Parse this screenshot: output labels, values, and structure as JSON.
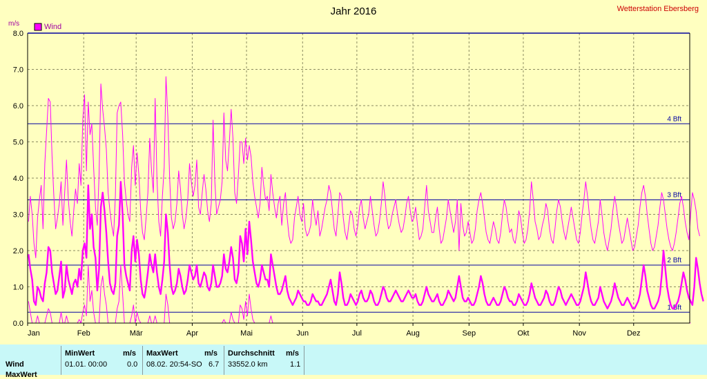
{
  "header": {
    "title": "Jahr 2016",
    "station": "Wetterstation Ebersberg"
  },
  "chart_data": {
    "type": "line",
    "ylabel": "m/s",
    "ylim": [
      0,
      8
    ],
    "yticks": [
      "0.0",
      "1.0",
      "2.0",
      "3.0",
      "4.0",
      "5.0",
      "6.0",
      "7.0",
      "8.0"
    ],
    "months": [
      "Jan",
      "Feb",
      "Mär",
      "Apr",
      "Mai",
      "Jun",
      "Jul",
      "Aug",
      "Sep",
      "Okt",
      "Nov",
      "Dez"
    ],
    "days_in_year": 366,
    "grid": true,
    "legend": {
      "label": "Wind",
      "position": "top-left",
      "color": "#ff00ff"
    },
    "beaufort": [
      {
        "label": "1 Bft",
        "value": 0.3
      },
      {
        "label": "2 Bft",
        "value": 1.6
      },
      {
        "label": "3 Bft",
        "value": 3.4
      },
      {
        "label": "4 Bft",
        "value": 5.5
      }
    ],
    "series": [
      {
        "name": "Wind",
        "color": "#ff00ff",
        "average": [
          1.9,
          1.5,
          1.2,
          0.6,
          0.5,
          1.0,
          0.9,
          0.7,
          0.6,
          1.1,
          1.4,
          2.1,
          2.0,
          1.4,
          1.1,
          0.8,
          0.9,
          1.3,
          1.7,
          0.7,
          0.9,
          1.6,
          1.2,
          1.0,
          0.8,
          1.1,
          1.2,
          1.0,
          1.5,
          1.2,
          2.0,
          2.2,
          1.8,
          3.8,
          2.6,
          3.0,
          2.1,
          1.8,
          0.9,
          1.5,
          3.2,
          3.6,
          3.1,
          2.5,
          1.7,
          1.1,
          0.9,
          0.8,
          1.1,
          2.4,
          2.7,
          3.9,
          3.0,
          1.6,
          1.3,
          1.1,
          0.9,
          2.0,
          2.4,
          1.7,
          2.3,
          1.9,
          1.2,
          0.8,
          0.7,
          1.0,
          1.4,
          1.9,
          1.6,
          1.4,
          1.9,
          1.4,
          1.0,
          0.8,
          1.2,
          1.7,
          3.0,
          2.5,
          1.6,
          1.0,
          0.8,
          0.9,
          1.1,
          1.5,
          1.3,
          1.0,
          0.8,
          0.9,
          1.2,
          1.6,
          1.4,
          1.2,
          1.3,
          1.6,
          1.1,
          1.0,
          1.2,
          1.4,
          1.3,
          1.0,
          0.9,
          1.1,
          1.6,
          1.3,
          1.0,
          1.0,
          1.1,
          1.3,
          1.9,
          1.5,
          1.4,
          1.7,
          2.1,
          1.8,
          1.2,
          1.1,
          1.4,
          2.4,
          2.2,
          1.7,
          2.6,
          1.9,
          2.8,
          2.3,
          1.7,
          1.4,
          1.1,
          1.0,
          1.2,
          1.6,
          1.4,
          1.2,
          1.2,
          1.0,
          1.9,
          1.6,
          1.3,
          1.0,
          0.8,
          0.8,
          0.9,
          1.1,
          1.3,
          0.9,
          0.7,
          0.6,
          0.5,
          0.6,
          0.7,
          0.9,
          0.8,
          0.7,
          0.6,
          0.6,
          0.5,
          0.5,
          0.6,
          0.8,
          0.7,
          0.6,
          0.6,
          0.5,
          0.5,
          0.6,
          0.7,
          0.8,
          1.0,
          1.2,
          0.9,
          0.6,
          0.5,
          0.8,
          1.4,
          1.1,
          0.7,
          0.5,
          0.5,
          0.6,
          0.8,
          0.7,
          0.6,
          0.5,
          0.6,
          0.8,
          0.9,
          0.7,
          0.6,
          0.6,
          0.7,
          0.9,
          0.8,
          0.6,
          0.5,
          0.5,
          0.6,
          0.8,
          1.0,
          0.9,
          0.7,
          0.6,
          0.6,
          0.7,
          0.8,
          0.9,
          0.8,
          0.7,
          0.6,
          0.6,
          0.7,
          0.8,
          0.9,
          0.8,
          0.7,
          0.7,
          0.8,
          0.6,
          0.5,
          0.5,
          0.6,
          0.8,
          1.0,
          0.8,
          0.7,
          0.6,
          0.6,
          0.7,
          0.8,
          0.6,
          0.5,
          0.5,
          0.6,
          0.7,
          0.9,
          0.8,
          0.7,
          0.6,
          0.7,
          1.0,
          1.3,
          1.0,
          0.7,
          0.6,
          0.6,
          0.7,
          0.6,
          0.5,
          0.5,
          0.6,
          0.8,
          1.0,
          1.3,
          1.1,
          0.8,
          0.6,
          0.5,
          0.5,
          0.6,
          0.7,
          0.6,
          0.5,
          0.5,
          0.6,
          0.8,
          1.0,
          0.9,
          0.7,
          0.6,
          0.6,
          0.5,
          0.5,
          0.6,
          0.8,
          0.7,
          0.6,
          0.5,
          0.5,
          0.6,
          0.8,
          1.1,
          0.9,
          0.7,
          0.6,
          0.5,
          0.5,
          0.6,
          0.7,
          0.9,
          0.8,
          0.6,
          0.5,
          0.5,
          0.6,
          0.8,
          1.0,
          0.9,
          0.7,
          0.6,
          0.5,
          0.6,
          0.7,
          0.8,
          0.7,
          0.6,
          0.5,
          0.5,
          0.6,
          0.8,
          1.0,
          1.4,
          1.1,
          0.8,
          0.6,
          0.5,
          0.5,
          0.6,
          0.7,
          1.0,
          0.8,
          0.6,
          0.5,
          0.4,
          0.5,
          0.6,
          0.8,
          1.1,
          0.9,
          0.7,
          0.6,
          0.5,
          0.5,
          0.6,
          0.7,
          0.6,
          0.5,
          0.4,
          0.4,
          0.5,
          0.6,
          0.8,
          1.2,
          1.6,
          1.3,
          0.9,
          0.7,
          0.5,
          0.4,
          0.4,
          0.5,
          0.6,
          0.8,
          1.3,
          2.0,
          1.5,
          1.0,
          0.7,
          0.5,
          0.4,
          0.4,
          0.5,
          0.6,
          0.8,
          1.1,
          1.4,
          1.2,
          0.9,
          0.7,
          0.6,
          0.5,
          1.0,
          1.8,
          1.5,
          1.1,
          0.8,
          0.6
        ],
        "maximum": [
          2.8,
          3.5,
          3.0,
          2.2,
          1.8,
          2.9,
          3.4,
          3.8,
          2.6,
          4.4,
          5.3,
          6.2,
          6.1,
          4.6,
          3.5,
          2.6,
          2.9,
          3.3,
          3.9,
          2.7,
          3.6,
          4.5,
          3.4,
          2.8,
          2.4,
          3.1,
          3.7,
          3.3,
          4.4,
          3.8,
          5.6,
          6.3,
          4.2,
          6.1,
          5.2,
          5.5,
          4.3,
          3.2,
          2.7,
          4.1,
          6.6,
          5.9,
          5.4,
          4.8,
          3.6,
          3.1,
          2.7,
          2.4,
          3.5,
          5.8,
          6.0,
          6.1,
          5.2,
          3.9,
          3.4,
          3.0,
          2.8,
          4.3,
          4.9,
          3.8,
          4.7,
          4.1,
          3.1,
          2.5,
          2.3,
          2.9,
          3.6,
          5.1,
          4.2,
          3.6,
          6.2,
          4.0,
          2.8,
          2.4,
          3.5,
          4.3,
          6.8,
          5.7,
          4.0,
          2.9,
          2.6,
          2.8,
          3.3,
          4.2,
          3.7,
          3.0,
          2.6,
          2.9,
          3.4,
          4.4,
          3.9,
          3.5,
          3.8,
          4.5,
          3.2,
          3.0,
          3.6,
          4.1,
          3.7,
          3.1,
          2.8,
          3.3,
          5.6,
          3.9,
          3.0,
          3.2,
          3.4,
          3.9,
          5.8,
          4.5,
          4.2,
          5.0,
          5.9,
          5.1,
          3.6,
          3.3,
          4.1,
          5.0,
          5.0,
          4.4,
          5.1,
          4.5,
          4.9,
          4.6,
          3.9,
          3.5,
          3.2,
          2.9,
          3.3,
          4.3,
          3.8,
          3.4,
          3.5,
          3.1,
          4.1,
          3.6,
          3.2,
          2.9,
          3.3,
          3.5,
          2.7,
          3.3,
          3.6,
          2.9,
          2.4,
          2.2,
          2.3,
          2.9,
          3.2,
          3.5,
          3.0,
          2.8,
          3.3,
          2.6,
          2.4,
          2.5,
          2.7,
          3.4,
          3.0,
          2.7,
          3.1,
          2.4,
          2.6,
          2.9,
          3.2,
          3.4,
          3.8,
          3.6,
          3.1,
          2.6,
          2.4,
          3.0,
          3.6,
          3.5,
          2.9,
          2.5,
          2.3,
          2.7,
          3.1,
          3.0,
          2.6,
          2.4,
          2.7,
          3.2,
          3.4,
          2.9,
          2.6,
          2.8,
          3.0,
          3.5,
          3.1,
          2.7,
          2.4,
          2.5,
          2.8,
          3.3,
          3.9,
          3.5,
          2.9,
          2.6,
          2.7,
          3.0,
          3.2,
          3.4,
          3.0,
          2.7,
          2.5,
          2.6,
          2.9,
          3.3,
          3.5,
          3.1,
          2.8,
          2.9,
          3.2,
          2.7,
          2.3,
          2.4,
          2.6,
          3.2,
          3.8,
          3.1,
          2.8,
          2.5,
          2.5,
          2.9,
          3.2,
          2.6,
          2.2,
          2.3,
          2.6,
          2.9,
          3.4,
          3.1,
          2.8,
          2.5,
          2.8,
          3.4,
          2.0,
          3.3,
          2.7,
          2.4,
          2.5,
          2.8,
          2.5,
          2.2,
          2.3,
          2.6,
          3.1,
          3.4,
          3.6,
          3.3,
          2.9,
          2.5,
          2.3,
          2.2,
          2.5,
          2.8,
          2.6,
          2.3,
          2.2,
          2.5,
          3.0,
          3.4,
          3.2,
          2.8,
          2.5,
          2.6,
          2.3,
          2.2,
          2.5,
          3.1,
          2.9,
          2.5,
          2.2,
          2.3,
          2.6,
          3.1,
          3.9,
          3.4,
          2.8,
          2.6,
          2.3,
          2.4,
          2.7,
          2.9,
          3.3,
          3.1,
          2.6,
          2.3,
          2.2,
          2.6,
          3.1,
          3.4,
          3.2,
          2.8,
          2.5,
          2.3,
          2.6,
          2.9,
          3.2,
          2.9,
          2.6,
          2.3,
          2.2,
          2.5,
          3.0,
          3.4,
          3.9,
          3.5,
          3.0,
          2.6,
          2.3,
          2.2,
          2.5,
          2.8,
          3.4,
          3.0,
          2.5,
          2.2,
          2.0,
          2.3,
          2.6,
          3.1,
          3.5,
          3.2,
          2.8,
          2.5,
          2.2,
          2.3,
          2.6,
          2.9,
          2.6,
          2.3,
          2.0,
          2.1,
          2.4,
          2.7,
          3.2,
          3.6,
          3.8,
          3.5,
          3.0,
          2.6,
          2.2,
          2.0,
          2.1,
          2.4,
          2.7,
          3.2,
          3.6,
          3.4,
          3.0,
          2.6,
          2.3,
          2.1,
          2.0,
          2.2,
          2.5,
          2.9,
          3.3,
          3.5,
          3.2,
          2.8,
          2.5,
          2.3,
          3.0,
          3.6,
          3.4,
          3.1,
          2.6,
          2.4
        ],
        "minimum": [
          0.6,
          0.3,
          0.0,
          0.0,
          0.0,
          0.2,
          0.0,
          0.0,
          0.0,
          0.0,
          0.2,
          0.4,
          0.3,
          0.0,
          0.0,
          0.0,
          0.0,
          0.0,
          0.3,
          0.0,
          0.0,
          0.2,
          0.0,
          0.0,
          0.0,
          0.0,
          0.0,
          0.0,
          0.1,
          0.0,
          0.3,
          0.5,
          0.2,
          1.6,
          0.6,
          0.9,
          0.3,
          0.0,
          0.0,
          0.0,
          1.0,
          1.3,
          0.8,
          0.5,
          0.0,
          0.0,
          0.0,
          0.0,
          0.0,
          0.4,
          0.6,
          1.6,
          0.8,
          0.0,
          0.0,
          0.0,
          0.0,
          0.2,
          0.5,
          0.0,
          0.3,
          0.1,
          0.0,
          0.0,
          0.0,
          0.0,
          0.0,
          0.2,
          0.0,
          0.0,
          0.2,
          0.0,
          0.0,
          0.0,
          0.0,
          0.0,
          0.8,
          0.5,
          0.0,
          0.0,
          0.0,
          0.0,
          0.0,
          0.0,
          0.0,
          0.0,
          0.0,
          0.0,
          0.0,
          0.0,
          0.0,
          0.0,
          0.0,
          0.0,
          0.0,
          0.0,
          0.0,
          0.0,
          0.0,
          0.0,
          0.0,
          0.0,
          0.0,
          0.0,
          0.0,
          0.0,
          0.0,
          0.0,
          0.1,
          0.0,
          0.0,
          0.0,
          0.3,
          0.1,
          0.0,
          0.0,
          0.0,
          0.5,
          0.4,
          0.1,
          0.6,
          0.2,
          0.8,
          0.4,
          0.1,
          0.0,
          0.0,
          0.0,
          0.0,
          0.0,
          0.0,
          0.0,
          0.0,
          0.0,
          0.2,
          0.0,
          0.0,
          0.0,
          0.0,
          0.0,
          0.0,
          0.0,
          0.0,
          0.0,
          0.0,
          0.0,
          0.0,
          0.0,
          0.0,
          0.0,
          0.0,
          0.0,
          0.0,
          0.0,
          0.0,
          0.0,
          0.0,
          0.0,
          0.0,
          0.0,
          0.0,
          0.0,
          0.0,
          0.0,
          0.0,
          0.0,
          0.0,
          0.0,
          0.0,
          0.0,
          0.0,
          0.0,
          0.0,
          0.0,
          0.0,
          0.0,
          0.0,
          0.0,
          0.0,
          0.0,
          0.0,
          0.0,
          0.0,
          0.0,
          0.0,
          0.0,
          0.0,
          0.0,
          0.0,
          0.0,
          0.0,
          0.0,
          0.0,
          0.0,
          0.0,
          0.0,
          0.0,
          0.0,
          0.0,
          0.0,
          0.0,
          0.0,
          0.0,
          0.0,
          0.0,
          0.0,
          0.0,
          0.0,
          0.0,
          0.0,
          0.0,
          0.0,
          0.0,
          0.0,
          0.0,
          0.0,
          0.0,
          0.0,
          0.0,
          0.0,
          0.0,
          0.0,
          0.0,
          0.0,
          0.0,
          0.0,
          0.0,
          0.0,
          0.0,
          0.0,
          0.0,
          0.0,
          0.0,
          0.0,
          0.0,
          0.0,
          0.0,
          0.0,
          0.0,
          0.0,
          0.0,
          0.0,
          0.0,
          0.0,
          0.0,
          0.0,
          0.0,
          0.0,
          0.0,
          0.0,
          0.0,
          0.0,
          0.0,
          0.0,
          0.0,
          0.0,
          0.0,
          0.0,
          0.0,
          0.0,
          0.0,
          0.0,
          0.0,
          0.0,
          0.0,
          0.0,
          0.0,
          0.0,
          0.0,
          0.0,
          0.0,
          0.0,
          0.0,
          0.0,
          0.0,
          0.0,
          0.0,
          0.0,
          0.0,
          0.0,
          0.0,
          0.0,
          0.0,
          0.0,
          0.0,
          0.0,
          0.0,
          0.0,
          0.0,
          0.0,
          0.0,
          0.0,
          0.0,
          0.0,
          0.0,
          0.0,
          0.0,
          0.0,
          0.0,
          0.0,
          0.0,
          0.0,
          0.0,
          0.0,
          0.0,
          0.0,
          0.0,
          0.0,
          0.0,
          0.0,
          0.0,
          0.0,
          0.0,
          0.0,
          0.0,
          0.0,
          0.0,
          0.0,
          0.0,
          0.0,
          0.0,
          0.0,
          0.0,
          0.0,
          0.0,
          0.0,
          0.0,
          0.0,
          0.0,
          0.0,
          0.0,
          0.0,
          0.0,
          0.0,
          0.0,
          0.0,
          0.0,
          0.0,
          0.0,
          0.0,
          0.0,
          0.0,
          0.0,
          0.0,
          0.0,
          0.0,
          0.0,
          0.0,
          0.0,
          0.0,
          0.0,
          0.0,
          0.0,
          0.0,
          0.0,
          0.0,
          0.0,
          0.0,
          0.0,
          0.0,
          0.0,
          0.0,
          0.0,
          0.0,
          0.0,
          0.0,
          0.0
        ]
      }
    ]
  },
  "stats": {
    "headers": {
      "minwert": "MinWert",
      "min_unit": "m/s",
      "maxwert": "MaxWert",
      "max_unit": "m/s",
      "durchschnitt": "Durchschnitt",
      "avg_unit": "m/s"
    },
    "rows": [
      {
        "label": "Wind",
        "min_time": "01.01.  00:00",
        "min_value": "0.0",
        "max_time": "08.02.  20:54-SO",
        "max_value": "6.7",
        "total": "33552.0 km",
        "avg_value": "1.1"
      },
      {
        "label": "MaxWert"
      }
    ]
  }
}
